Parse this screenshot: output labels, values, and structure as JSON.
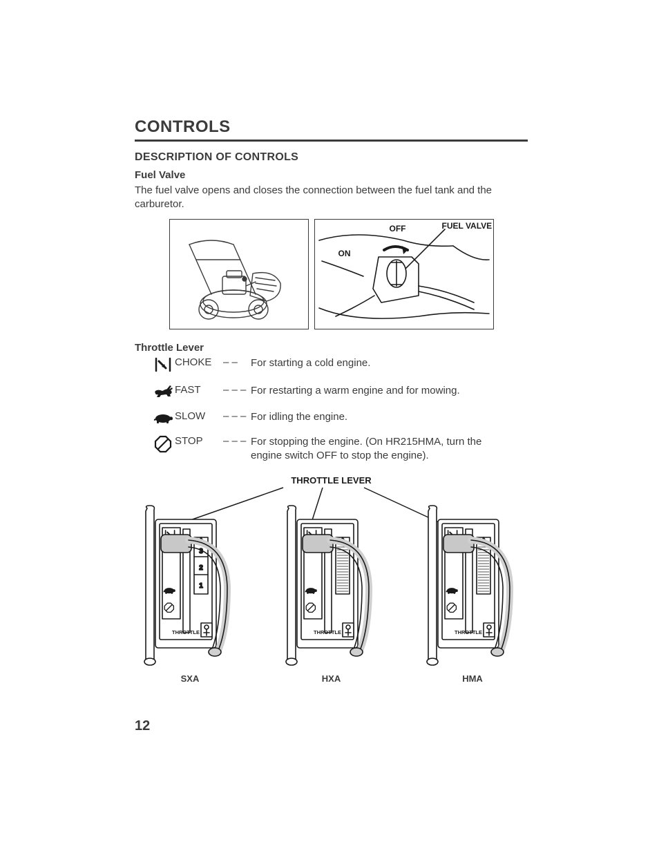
{
  "page_number": "12",
  "section_title": "CONTROLS",
  "subsection_title": "DESCRIPTION OF CONTROLS",
  "fuel_valve": {
    "heading": "Fuel Valve",
    "body": "The fuel valve opens and closes the connection between the fuel tank and the carburetor.",
    "labels": {
      "off": "OFF",
      "on": "ON",
      "callout": "FUEL VALVE"
    }
  },
  "throttle": {
    "heading": "Throttle Lever",
    "rows": [
      {
        "icon": "choke",
        "name": "CHOKE",
        "dash": "– –",
        "desc": "For starting a cold engine."
      },
      {
        "icon": "fast",
        "name": "FAST",
        "dash": "– – –",
        "desc": "For restarting a warm engine and for mowing."
      },
      {
        "icon": "slow",
        "name": "SLOW",
        "dash": "– – –",
        "desc": "For idling the engine."
      },
      {
        "icon": "stop",
        "name": "STOP",
        "dash": "– – –",
        "desc": "For stopping the engine. (On HR215HMA, turn the engine switch OFF to stop the engine)."
      }
    ],
    "diagram_title": "THROTTLE LEVER",
    "variants": [
      {
        "label": "SXA",
        "gauge": "numbers"
      },
      {
        "label": "HXA",
        "gauge": "hatch"
      },
      {
        "label": "HMA",
        "gauge": "hatch"
      }
    ],
    "panel_text": "THROTTLE"
  },
  "colors": {
    "ink": "#3b3b3b",
    "black": "#1a1a1a",
    "bg": "#ffffff"
  }
}
